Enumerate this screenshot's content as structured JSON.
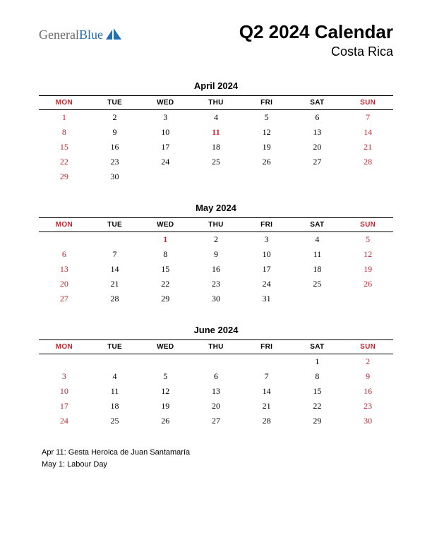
{
  "colors": {
    "text": "#000000",
    "red": "#c1272d",
    "logo_gray": "#6b6b6b",
    "logo_blue": "#1f6fb2",
    "background": "#ffffff",
    "border": "#000000"
  },
  "typography": {
    "title_fontsize": 26,
    "subtitle_fontsize": 18,
    "month_title_fontsize": 13,
    "day_header_fontsize": 10,
    "day_cell_fontsize": 12,
    "holiday_fontsize": 11
  },
  "logo": {
    "word1": "General",
    "word2": "Blue"
  },
  "title": "Q2 2024 Calendar",
  "subtitle": "Costa Rica",
  "day_headers": [
    "MON",
    "TUE",
    "WED",
    "THU",
    "FRI",
    "SAT",
    "SUN"
  ],
  "day_header_red_cols": [
    0,
    6
  ],
  "months": [
    {
      "title": "April 2024",
      "weeks": [
        [
          {
            "d": "1",
            "r": true
          },
          {
            "d": "2"
          },
          {
            "d": "3"
          },
          {
            "d": "4"
          },
          {
            "d": "5"
          },
          {
            "d": "6"
          },
          {
            "d": "7",
            "r": true
          }
        ],
        [
          {
            "d": "8",
            "r": true
          },
          {
            "d": "9"
          },
          {
            "d": "10"
          },
          {
            "d": "11",
            "r": true,
            "b": true
          },
          {
            "d": "12"
          },
          {
            "d": "13"
          },
          {
            "d": "14",
            "r": true
          }
        ],
        [
          {
            "d": "15",
            "r": true
          },
          {
            "d": "16"
          },
          {
            "d": "17"
          },
          {
            "d": "18"
          },
          {
            "d": "19"
          },
          {
            "d": "20"
          },
          {
            "d": "21",
            "r": true
          }
        ],
        [
          {
            "d": "22",
            "r": true
          },
          {
            "d": "23"
          },
          {
            "d": "24"
          },
          {
            "d": "25"
          },
          {
            "d": "26"
          },
          {
            "d": "27"
          },
          {
            "d": "28",
            "r": true
          }
        ],
        [
          {
            "d": "29",
            "r": true
          },
          {
            "d": "30"
          },
          {
            "d": ""
          },
          {
            "d": ""
          },
          {
            "d": ""
          },
          {
            "d": ""
          },
          {
            "d": ""
          }
        ]
      ]
    },
    {
      "title": "May 2024",
      "weeks": [
        [
          {
            "d": ""
          },
          {
            "d": ""
          },
          {
            "d": "1",
            "r": true,
            "b": true
          },
          {
            "d": "2"
          },
          {
            "d": "3"
          },
          {
            "d": "4"
          },
          {
            "d": "5",
            "r": true
          }
        ],
        [
          {
            "d": "6",
            "r": true
          },
          {
            "d": "7"
          },
          {
            "d": "8"
          },
          {
            "d": "9"
          },
          {
            "d": "10"
          },
          {
            "d": "11"
          },
          {
            "d": "12",
            "r": true
          }
        ],
        [
          {
            "d": "13",
            "r": true
          },
          {
            "d": "14"
          },
          {
            "d": "15"
          },
          {
            "d": "16"
          },
          {
            "d": "17"
          },
          {
            "d": "18"
          },
          {
            "d": "19",
            "r": true
          }
        ],
        [
          {
            "d": "20",
            "r": true
          },
          {
            "d": "21"
          },
          {
            "d": "22"
          },
          {
            "d": "23"
          },
          {
            "d": "24"
          },
          {
            "d": "25"
          },
          {
            "d": "26",
            "r": true
          }
        ],
        [
          {
            "d": "27",
            "r": true
          },
          {
            "d": "28"
          },
          {
            "d": "29"
          },
          {
            "d": "30"
          },
          {
            "d": "31"
          },
          {
            "d": ""
          },
          {
            "d": ""
          }
        ]
      ]
    },
    {
      "title": "June 2024",
      "weeks": [
        [
          {
            "d": ""
          },
          {
            "d": ""
          },
          {
            "d": ""
          },
          {
            "d": ""
          },
          {
            "d": ""
          },
          {
            "d": "1"
          },
          {
            "d": "2",
            "r": true
          }
        ],
        [
          {
            "d": "3",
            "r": true
          },
          {
            "d": "4"
          },
          {
            "d": "5"
          },
          {
            "d": "6"
          },
          {
            "d": "7"
          },
          {
            "d": "8"
          },
          {
            "d": "9",
            "r": true
          }
        ],
        [
          {
            "d": "10",
            "r": true
          },
          {
            "d": "11"
          },
          {
            "d": "12"
          },
          {
            "d": "13"
          },
          {
            "d": "14"
          },
          {
            "d": "15"
          },
          {
            "d": "16",
            "r": true
          }
        ],
        [
          {
            "d": "17",
            "r": true
          },
          {
            "d": "18"
          },
          {
            "d": "19"
          },
          {
            "d": "20"
          },
          {
            "d": "21"
          },
          {
            "d": "22"
          },
          {
            "d": "23",
            "r": true
          }
        ],
        [
          {
            "d": "24",
            "r": true
          },
          {
            "d": "25"
          },
          {
            "d": "26"
          },
          {
            "d": "27"
          },
          {
            "d": "28"
          },
          {
            "d": "29"
          },
          {
            "d": "30",
            "r": true
          }
        ]
      ]
    }
  ],
  "holidays": [
    "Apr 11: Gesta Heroica de Juan Santamaría",
    "May 1: Labour Day"
  ]
}
